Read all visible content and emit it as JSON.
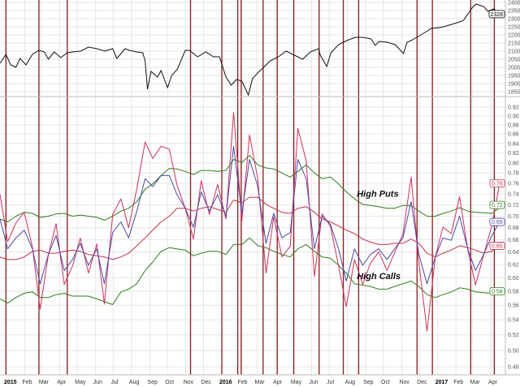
{
  "chart_data": {
    "type": "line",
    "grid": true,
    "x_ticks": [
      {
        "date": "2015-01-01",
        "label": "2015",
        "year": true
      },
      {
        "date": "2015-02-01",
        "label": "Feb"
      },
      {
        "date": "2015-03-01",
        "label": "Mar"
      },
      {
        "date": "2015-04-01",
        "label": "Apr"
      },
      {
        "date": "2015-05-01",
        "label": "May"
      },
      {
        "date": "2015-06-01",
        "label": "Jun"
      },
      {
        "date": "2015-07-01",
        "label": "Jul"
      },
      {
        "date": "2015-08-01",
        "label": "Aug"
      },
      {
        "date": "2015-09-01",
        "label": "Sep"
      },
      {
        "date": "2015-10-01",
        "label": "Oct"
      },
      {
        "date": "2015-11-01",
        "label": "Nov"
      },
      {
        "date": "2015-12-01",
        "label": "Dec"
      },
      {
        "date": "2016-01-01",
        "label": "2016",
        "year": true
      },
      {
        "date": "2016-02-01",
        "label": "Feb"
      },
      {
        "date": "2016-03-01",
        "label": "Mar"
      },
      {
        "date": "2016-04-01",
        "label": "Apr"
      },
      {
        "date": "2016-05-01",
        "label": "May"
      },
      {
        "date": "2016-06-01",
        "label": "Jun"
      },
      {
        "date": "2016-07-01",
        "label": "Jul"
      },
      {
        "date": "2016-08-01",
        "label": "Aug"
      },
      {
        "date": "2016-09-01",
        "label": "Sep"
      },
      {
        "date": "2016-10-01",
        "label": "Oct"
      },
      {
        "date": "2016-11-01",
        "label": "Nov"
      },
      {
        "date": "2016-12-01",
        "label": "Dec"
      },
      {
        "date": "2017-01-01",
        "label": "2017",
        "year": true
      },
      {
        "date": "2017-02-01",
        "label": "Feb"
      },
      {
        "date": "2017-03-01",
        "label": "Mar"
      },
      {
        "date": "2017-04-01",
        "label": "Apr"
      }
    ],
    "event_lines": [
      "2014-12-31",
      "2015-02-25",
      "2015-04-14",
      "2015-11-09",
      "2016-01-01",
      "2016-01-28",
      "2016-02-03",
      "2016-03-11",
      "2016-04-04",
      "2016-05-02",
      "2016-06-14",
      "2016-07-25",
      "2016-08-20",
      "2016-11-27",
      "2016-12-23",
      "2017-02-26",
      "2017-04-07"
    ],
    "event_line_color": "#8b1a1a",
    "panels": [
      {
        "name": "price",
        "scale": "linear",
        "ylim": [
          1850,
          2400
        ],
        "y_ticks": [
          2400,
          2350,
          2300,
          2250,
          2200,
          2150,
          2100,
          2050,
          2000,
          1950,
          1900,
          1850
        ],
        "last_value_tag": {
          "value": "2328",
          "color": "#000000"
        },
        "series": [
          {
            "color": "#111111",
            "dates": [
              "2014-12-21",
              "2014-12-31",
              "2015-01-08",
              "2015-01-17",
              "2015-01-24",
              "2015-02-03",
              "2015-02-14",
              "2015-02-25",
              "2015-03-06",
              "2015-03-13",
              "2015-03-23",
              "2015-04-03",
              "2015-04-14",
              "2015-04-23",
              "2015-05-07",
              "2015-05-20",
              "2015-06-03",
              "2015-06-17",
              "2015-06-30",
              "2015-07-07",
              "2015-07-21",
              "2015-07-28",
              "2015-08-10",
              "2015-08-20",
              "2015-08-24",
              "2015-08-28",
              "2015-09-03",
              "2015-09-14",
              "2015-09-20",
              "2015-10-01",
              "2015-10-08",
              "2015-10-18",
              "2015-10-31",
              "2015-11-07",
              "2015-11-21",
              "2015-12-05",
              "2015-12-18",
              "2015-12-28",
              "2016-01-08",
              "2016-01-17",
              "2016-01-26",
              "2016-02-04",
              "2016-02-15",
              "2016-02-22",
              "2016-03-03",
              "2016-03-09",
              "2016-03-23",
              "2016-04-06",
              "2016-04-19",
              "2016-05-03",
              "2016-05-17",
              "2016-05-30",
              "2016-06-13",
              "2016-06-16",
              "2016-06-27",
              "2016-07-04",
              "2016-07-17",
              "2016-07-31",
              "2016-08-14",
              "2016-08-27",
              "2016-09-10",
              "2016-09-17",
              "2016-09-24",
              "2016-10-07",
              "2016-10-21",
              "2016-11-04",
              "2016-11-10",
              "2016-11-17",
              "2016-12-01",
              "2016-12-15",
              "2016-12-21",
              "2017-01-04",
              "2017-01-11",
              "2017-01-25",
              "2017-02-07",
              "2017-02-14",
              "2017-02-28",
              "2017-03-07",
              "2017-03-20",
              "2017-03-27",
              "2017-04-06",
              "2017-04-16"
            ],
            "values": [
              2025,
              2080,
              2015,
              2000,
              2055,
              2015,
              2080,
              2105,
              2095,
              2050,
              2095,
              2060,
              2090,
              2095,
              2100,
              2125,
              2115,
              2100,
              2115,
              2055,
              2115,
              2105,
              2095,
              2090,
              2040,
              1865,
              1975,
              1940,
              1980,
              1875,
              1950,
              1990,
              2105,
              2105,
              2065,
              2095,
              2065,
              2065,
              1940,
              1890,
              1925,
              1915,
              1830,
              1930,
              1970,
              1990,
              2040,
              2065,
              2100,
              2075,
              2050,
              2095,
              2115,
              2075,
              2005,
              2090,
              2140,
              2165,
              2185,
              2185,
              2175,
              2135,
              2160,
              2155,
              2140,
              2085,
              2155,
              2165,
              2195,
              2225,
              2240,
              2245,
              2250,
              2265,
              2280,
              2290,
              2365,
              2390,
              2375,
              2345,
              2360,
              2328
            ]
          }
        ]
      },
      {
        "name": "ratio",
        "scale": "log",
        "ylim": [
          0.48,
          0.92
        ],
        "y_ticks": [
          0.92,
          0.9,
          0.88,
          0.86,
          0.84,
          0.82,
          0.8,
          0.78,
          0.76,
          0.74,
          0.72,
          0.7,
          0.68,
          0.66,
          0.64,
          0.62,
          0.6,
          0.58,
          0.56,
          0.54,
          0.52,
          0.5,
          0.48
        ],
        "annotations": [
          {
            "text": "High Puts",
            "date": "2016-08-17",
            "value": 0.735
          },
          {
            "text": "High Calls",
            "date": "2016-08-17",
            "value": 0.598
          }
        ],
        "dates": [
          "2014-12-21",
          "2015-01-03",
          "2015-01-17",
          "2015-01-31",
          "2015-02-14",
          "2015-02-27",
          "2015-03-13",
          "2015-03-26",
          "2015-04-09",
          "2015-04-23",
          "2015-05-06",
          "2015-05-20",
          "2015-06-03",
          "2015-06-16",
          "2015-06-30",
          "2015-07-14",
          "2015-07-27",
          "2015-08-10",
          "2015-08-24",
          "2015-09-06",
          "2015-09-20",
          "2015-10-04",
          "2015-10-17",
          "2015-10-31",
          "2015-11-14",
          "2015-11-27",
          "2015-12-11",
          "2015-12-25",
          "2016-01-08",
          "2016-01-21",
          "2016-02-04",
          "2016-02-17",
          "2016-03-02",
          "2016-03-16",
          "2016-03-29",
          "2016-04-12",
          "2016-04-26",
          "2016-05-09",
          "2016-05-23",
          "2016-06-06",
          "2016-06-19",
          "2016-07-03",
          "2016-07-17",
          "2016-07-30",
          "2016-08-13",
          "2016-08-27",
          "2016-09-09",
          "2016-09-23",
          "2016-10-07",
          "2016-10-20",
          "2016-11-03",
          "2016-11-17",
          "2016-11-30",
          "2016-12-14",
          "2016-12-28",
          "2017-01-10",
          "2017-01-24",
          "2017-02-07",
          "2017-02-21",
          "2017-03-06",
          "2017-03-20",
          "2017-04-03",
          "2017-04-16"
        ],
        "series": [
          {
            "role": "upper-band",
            "color": "#2e7d1e",
            "last_value_tag": "0.72",
            "values": [
              0.695,
              0.69,
              0.7,
              0.707,
              0.705,
              0.698,
              0.7,
              0.704,
              0.705,
              0.7,
              0.702,
              0.7,
              0.698,
              0.693,
              0.7,
              0.709,
              0.714,
              0.726,
              0.749,
              0.759,
              0.775,
              0.789,
              0.788,
              0.783,
              0.777,
              0.785,
              0.785,
              0.783,
              0.785,
              0.807,
              0.801,
              0.815,
              0.796,
              0.79,
              0.788,
              0.78,
              0.772,
              0.783,
              0.796,
              0.78,
              0.769,
              0.772,
              0.759,
              0.744,
              0.731,
              0.721,
              0.719,
              0.717,
              0.714,
              0.714,
              0.719,
              0.719,
              0.709,
              0.7,
              0.7,
              0.705,
              0.709,
              0.715,
              0.709,
              0.707,
              0.706,
              0.705,
              0.715
            ]
          },
          {
            "role": "lower-band",
            "color": "#2e7d1e",
            "last_value_tag": "0.58",
            "values": [
              0.569,
              0.563,
              0.571,
              0.577,
              0.579,
              0.571,
              0.571,
              0.575,
              0.577,
              0.573,
              0.573,
              0.573,
              0.569,
              0.565,
              0.561,
              0.579,
              0.583,
              0.591,
              0.611,
              0.624,
              0.641,
              0.647,
              0.645,
              0.643,
              0.634,
              0.638,
              0.641,
              0.641,
              0.636,
              0.652,
              0.652,
              0.663,
              0.65,
              0.647,
              0.641,
              0.636,
              0.632,
              0.645,
              0.652,
              0.641,
              0.632,
              0.63,
              0.619,
              0.607,
              0.591,
              0.589,
              0.587,
              0.583,
              0.583,
              0.587,
              0.591,
              0.595,
              0.587,
              0.575,
              0.571,
              0.575,
              0.579,
              0.585,
              0.583,
              0.579,
              0.578,
              0.577,
              0.58
            ]
          },
          {
            "role": "moving-average",
            "color": "#c8304a",
            "last_value_tag": "0.65",
            "values": [
              0.632,
              0.628,
              0.628,
              0.632,
              0.641,
              0.643,
              0.638,
              0.638,
              0.641,
              0.643,
              0.641,
              0.636,
              0.634,
              0.632,
              0.628,
              0.632,
              0.638,
              0.65,
              0.663,
              0.676,
              0.69,
              0.7,
              0.714,
              0.714,
              0.709,
              0.714,
              0.717,
              0.712,
              0.707,
              0.729,
              0.724,
              0.734,
              0.734,
              0.721,
              0.714,
              0.707,
              0.705,
              0.714,
              0.717,
              0.707,
              0.695,
              0.69,
              0.683,
              0.676,
              0.67,
              0.661,
              0.656,
              0.652,
              0.652,
              0.654,
              0.654,
              0.661,
              0.654,
              0.638,
              0.632,
              0.638,
              0.643,
              0.65,
              0.647,
              0.643,
              0.638,
              0.641,
              0.65
            ]
          },
          {
            "role": "ratio",
            "color": "#d2305a",
            "last_value_tag": "0.76",
            "values": [
              0.739,
              0.657,
              0.688,
              0.707,
              0.648,
              0.555,
              0.635,
              0.687,
              0.59,
              0.618,
              0.663,
              0.607,
              0.653,
              0.562,
              0.703,
              0.731,
              0.68,
              0.75,
              0.843,
              0.809,
              0.834,
              0.828,
              0.757,
              0.714,
              0.661,
              0.765,
              0.703,
              0.758,
              0.695,
              0.908,
              0.692,
              0.858,
              0.768,
              0.607,
              0.699,
              0.632,
              0.649,
              0.872,
              0.805,
              0.602,
              0.704,
              0.683,
              0.618,
              0.558,
              0.628,
              0.59,
              0.622,
              0.64,
              0.611,
              0.639,
              0.669,
              0.772,
              0.623,
              0.525,
              0.632,
              0.681,
              0.67,
              0.735,
              0.644,
              0.589,
              0.635,
              0.685,
              0.76
            ]
          },
          {
            "role": "smoothed-ratio",
            "color": "#4a4aa8",
            "last_value_tag": "0.69",
            "values": [
              0.695,
              0.645,
              0.663,
              0.676,
              0.645,
              0.591,
              0.636,
              0.667,
              0.611,
              0.628,
              0.654,
              0.619,
              0.645,
              0.591,
              0.672,
              0.69,
              0.663,
              0.709,
              0.769,
              0.754,
              0.775,
              0.775,
              0.739,
              0.714,
              0.681,
              0.744,
              0.709,
              0.739,
              0.7,
              0.834,
              0.705,
              0.807,
              0.754,
              0.654,
              0.705,
              0.663,
              0.672,
              0.807,
              0.769,
              0.645,
              0.7,
              0.686,
              0.645,
              0.595,
              0.645,
              0.619,
              0.636,
              0.645,
              0.628,
              0.645,
              0.663,
              0.726,
              0.636,
              0.591,
              0.632,
              0.663,
              0.659,
              0.7,
              0.645,
              0.611,
              0.636,
              0.667,
              0.69
            ]
          }
        ]
      }
    ]
  }
}
